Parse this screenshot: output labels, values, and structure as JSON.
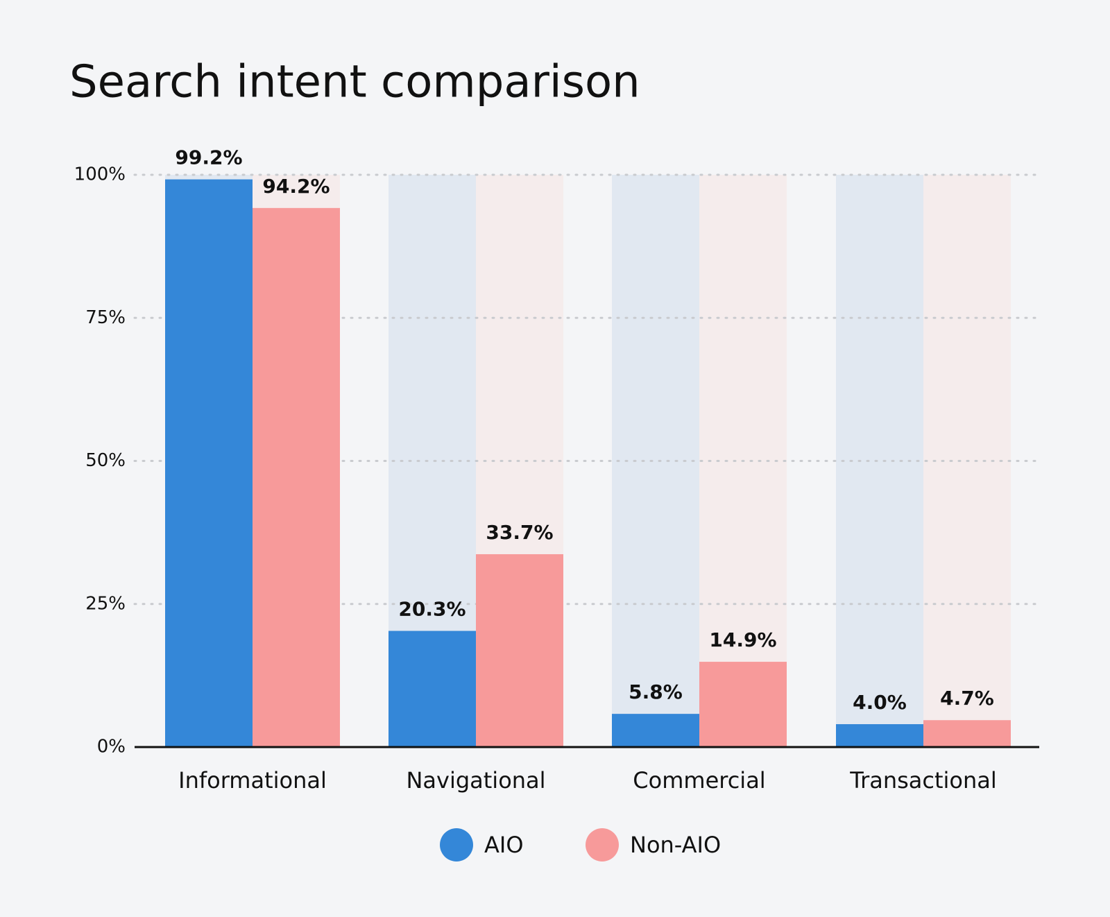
{
  "chart_data": {
    "type": "bar",
    "title": "Search intent comparison",
    "categories": [
      "Informational",
      "Navigational",
      "Commercial",
      "Transactional"
    ],
    "series": [
      {
        "name": "AIO",
        "color": "#3487d8",
        "track_color": "#e1e8f1",
        "values": [
          99.2,
          20.3,
          5.8,
          4.0
        ],
        "value_labels": [
          "99.2%",
          "20.3%",
          "5.8%",
          "4.0%"
        ]
      },
      {
        "name": "Non-AIO",
        "color": "#f79a9a",
        "track_color": "#f5ecec",
        "values": [
          94.2,
          33.7,
          14.9,
          4.7
        ],
        "value_labels": [
          "94.2%",
          "33.7%",
          "14.9%",
          "4.7%"
        ]
      }
    ],
    "ylim": [
      0,
      100
    ],
    "yticks": [
      {
        "value": 0,
        "label": "0%"
      },
      {
        "value": 25,
        "label": "25%"
      },
      {
        "value": 50,
        "label": "50%"
      },
      {
        "value": 75,
        "label": "75%"
      },
      {
        "value": 100,
        "label": "100%"
      }
    ],
    "grid": true,
    "legend": "bottom"
  }
}
